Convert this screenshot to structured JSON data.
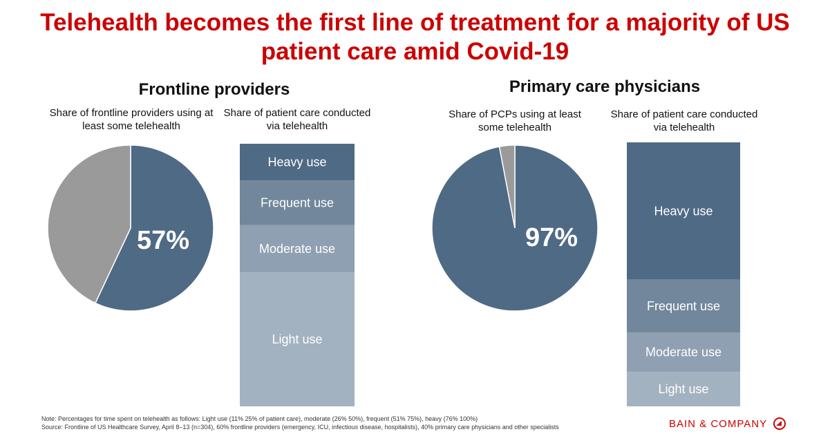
{
  "title": "Telehealth becomes the first line of treatment for a majority of US patient care amid Covid-19",
  "logo": "BAIN & COMPANY",
  "colors": {
    "heavy": "#4f6a85",
    "frequent": "#72879c",
    "moderate": "#8fa0b2",
    "light": "#a3b2c0",
    "other": "#9a9a9a",
    "title": "#cc0000"
  },
  "note": "Note: Percentages for time spent on telehealth as follows: Light use (11% 25% of patient care), moderate (26% 50%), frequent (51% 75%), heavy (76% 100%)",
  "source": "Source: Frontline of US Healthcare Survey, April 8–13 (n=304), 60% frontline providers (emergency, ICU, infectious disease, hospitalists), 40% primary care physicians and other specialists",
  "chart_data": [
    {
      "type": "pie",
      "group": "Frontline providers",
      "title": "Share of frontline providers using at least some telehealth",
      "values": [
        57,
        43
      ],
      "label": "57%"
    },
    {
      "type": "bar",
      "group": "Frontline providers",
      "stacked": true,
      "title": "Share of patient care conducted via telehealth",
      "categories": [
        "Heavy use",
        "Frequent use",
        "Moderate use",
        "Light use"
      ],
      "values": [
        14,
        17,
        18,
        51
      ]
    },
    {
      "type": "pie",
      "group": "Primary care physicians",
      "title": "Share of PCPs using at least some telehealth",
      "values": [
        97,
        3
      ],
      "label": "97%"
    },
    {
      "type": "bar",
      "group": "Primary care physicians",
      "stacked": true,
      "title": "Share of patient care conducted via telehealth",
      "categories": [
        "Heavy use",
        "Frequent use",
        "Moderate use",
        "Light use"
      ],
      "values": [
        52,
        20,
        15,
        13
      ]
    }
  ]
}
